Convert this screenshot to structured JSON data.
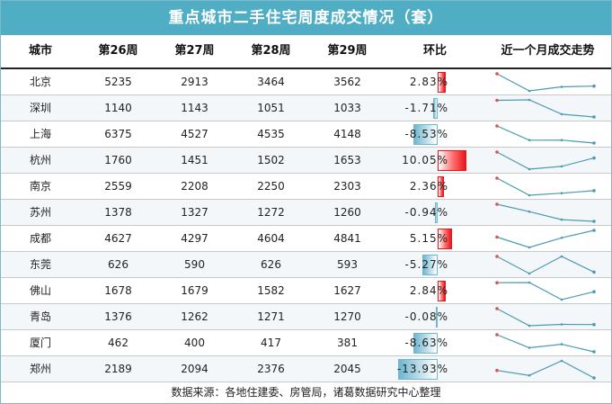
{
  "title": "重点城市二手住宅周度成交情况（套）",
  "headers": {
    "city": "城市",
    "w26": "第26周",
    "w27": "第27周",
    "w28": "第28周",
    "w29": "第29周",
    "chg": "环比",
    "trend": "近一个月成交走势"
  },
  "footer": "数据来源：各地住建委、房管局，诸葛数据研究中心整理",
  "colors": {
    "title_bg": "#4fadc4",
    "positive_bar": "#e8161b",
    "negative_bar": "#6fb6cf",
    "sparkline": "#4a9bb0",
    "marker": "#d9534f"
  },
  "chart_data": {
    "type": "table",
    "columns": [
      "城市",
      "第26周",
      "第27周",
      "第28周",
      "第29周",
      "环比",
      "近一个月成交走势"
    ],
    "rows": [
      {
        "city": "北京",
        "values": [
          5235,
          2913,
          3464,
          3562
        ],
        "chg": "2.83%",
        "chg_value": 2.83
      },
      {
        "city": "深圳",
        "values": [
          1140,
          1143,
          1051,
          1033
        ],
        "chg": "-1.71%",
        "chg_value": -1.71
      },
      {
        "city": "上海",
        "values": [
          6375,
          4527,
          4535,
          4148
        ],
        "chg": "-8.53%",
        "chg_value": -8.53
      },
      {
        "city": "杭州",
        "values": [
          1760,
          1451,
          1502,
          1653
        ],
        "chg": "10.05%",
        "chg_value": 10.05
      },
      {
        "city": "南京",
        "values": [
          2559,
          2208,
          2250,
          2303
        ],
        "chg": "2.36%",
        "chg_value": 2.36
      },
      {
        "city": "苏州",
        "values": [
          1378,
          1327,
          1272,
          1260
        ],
        "chg": "-0.94%",
        "chg_value": -0.94
      },
      {
        "city": "成都",
        "values": [
          4627,
          4297,
          4604,
          4841
        ],
        "chg": "5.15%",
        "chg_value": 5.15
      },
      {
        "city": "东莞",
        "values": [
          626,
          590,
          626,
          593
        ],
        "chg": "-5.27%",
        "chg_value": -5.27
      },
      {
        "city": "佛山",
        "values": [
          1678,
          1679,
          1582,
          1627
        ],
        "chg": "2.84%",
        "chg_value": 2.84
      },
      {
        "city": "青岛",
        "values": [
          1376,
          1262,
          1271,
          1270
        ],
        "chg": "-0.08%",
        "chg_value": -0.08
      },
      {
        "city": "厦门",
        "values": [
          462,
          400,
          417,
          381
        ],
        "chg": "-8.63%",
        "chg_value": -8.63
      },
      {
        "city": "郑州",
        "values": [
          2189,
          2094,
          2376,
          2045
        ],
        "chg": "-13.93%",
        "chg_value": -13.93
      }
    ]
  }
}
